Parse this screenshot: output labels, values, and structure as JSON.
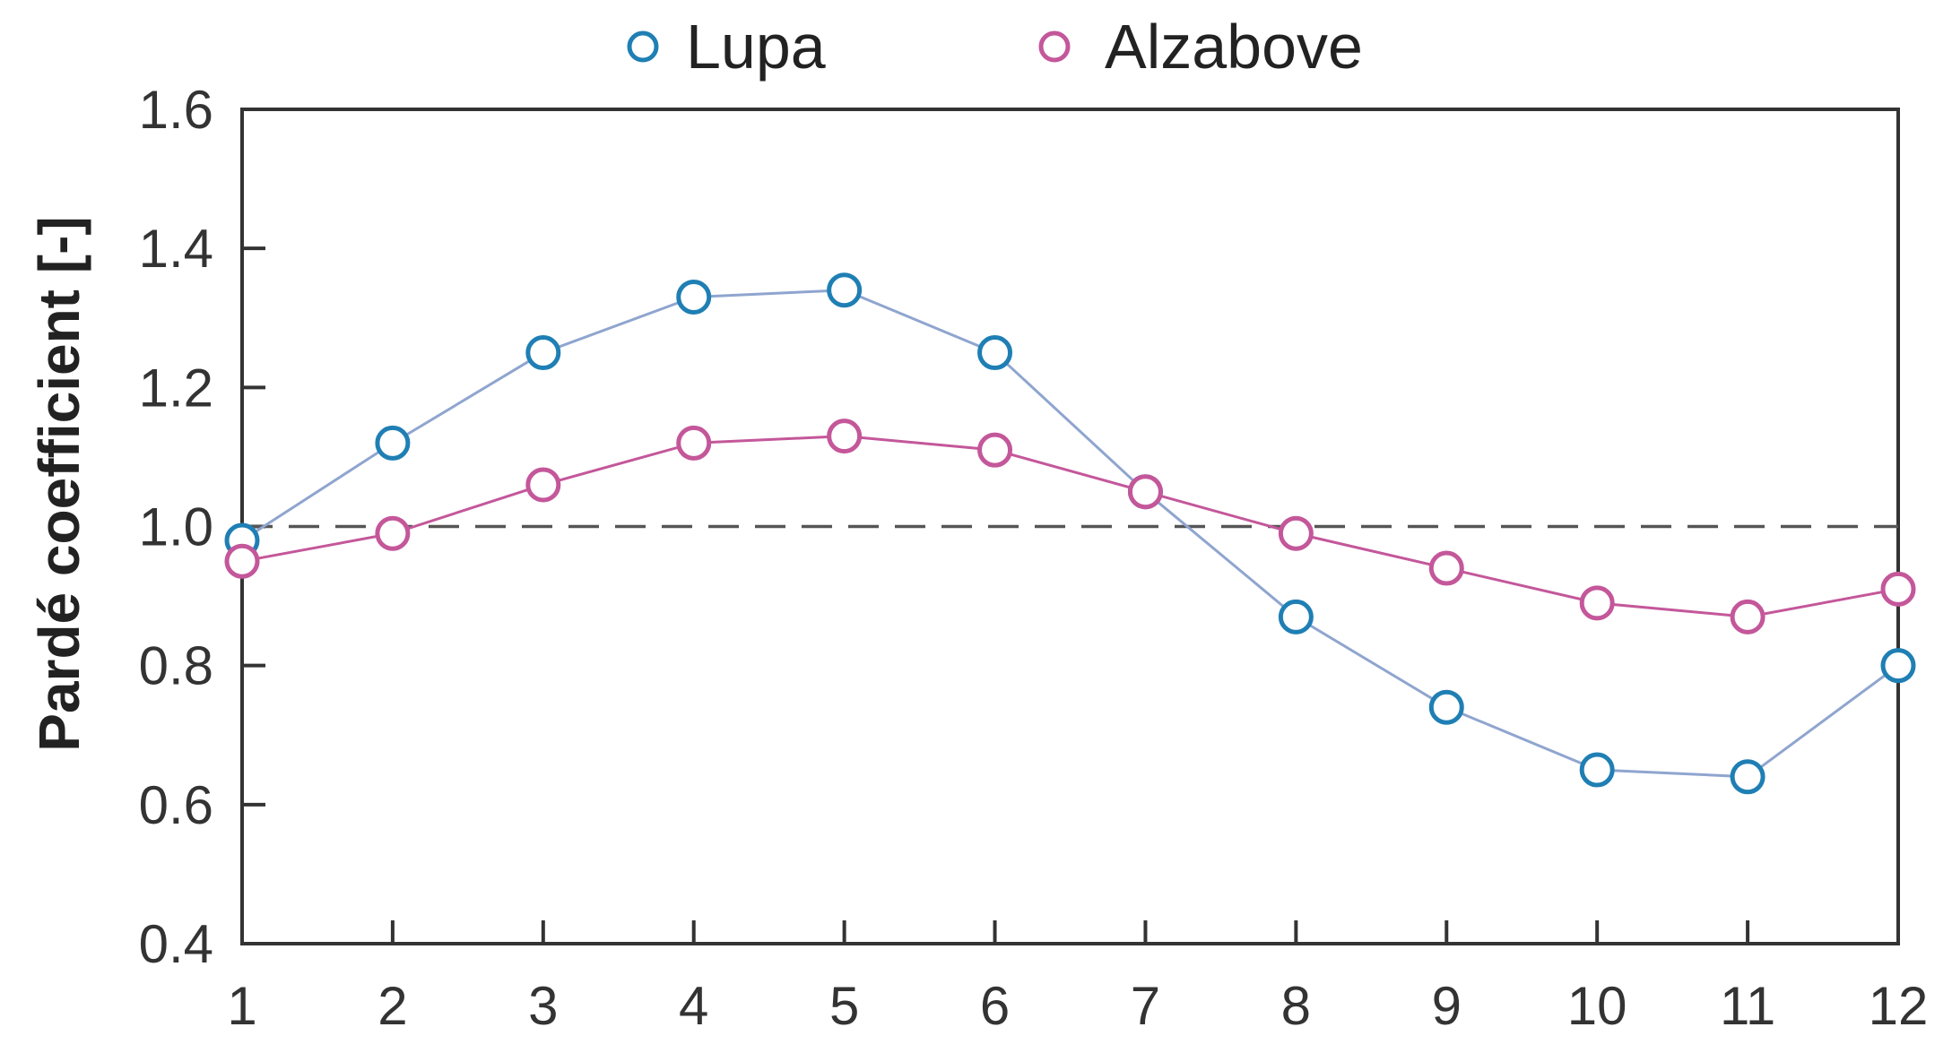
{
  "chart_data": {
    "type": "line",
    "title": "",
    "xlabel": "",
    "ylabel": "Pardé coefficient [-]",
    "x": [
      1,
      2,
      3,
      4,
      5,
      6,
      7,
      8,
      9,
      10,
      11,
      12
    ],
    "xticks": [
      "1",
      "2",
      "3",
      "4",
      "5",
      "6",
      "7",
      "8",
      "9",
      "10",
      "11",
      "12"
    ],
    "xlim": [
      1,
      12
    ],
    "ylim": [
      0.4,
      1.6
    ],
    "yticks": [
      "0.4",
      "0.6",
      "0.8",
      "1.0",
      "1.2",
      "1.4",
      "1.6"
    ],
    "ytick_values": [
      0.4,
      0.6,
      0.8,
      1.0,
      1.2,
      1.4,
      1.6
    ],
    "reference_line": {
      "y": 1.0,
      "style": "dashed",
      "color": "#555555"
    },
    "grid": false,
    "legend_position": "top",
    "series": [
      {
        "name": "Lupa",
        "marker_color": "#1f7fb4",
        "line_color": "#8fa5cf",
        "values": [
          0.98,
          1.12,
          1.25,
          1.33,
          1.34,
          1.25,
          1.05,
          0.87,
          0.74,
          0.65,
          0.64,
          0.8
        ]
      },
      {
        "name": "Alzabove",
        "marker_color": "#c4579a",
        "line_color": "#c4579a",
        "values": [
          0.95,
          0.99,
          1.06,
          1.12,
          1.13,
          1.11,
          1.05,
          0.99,
          0.94,
          0.89,
          0.87,
          0.91
        ]
      }
    ]
  }
}
